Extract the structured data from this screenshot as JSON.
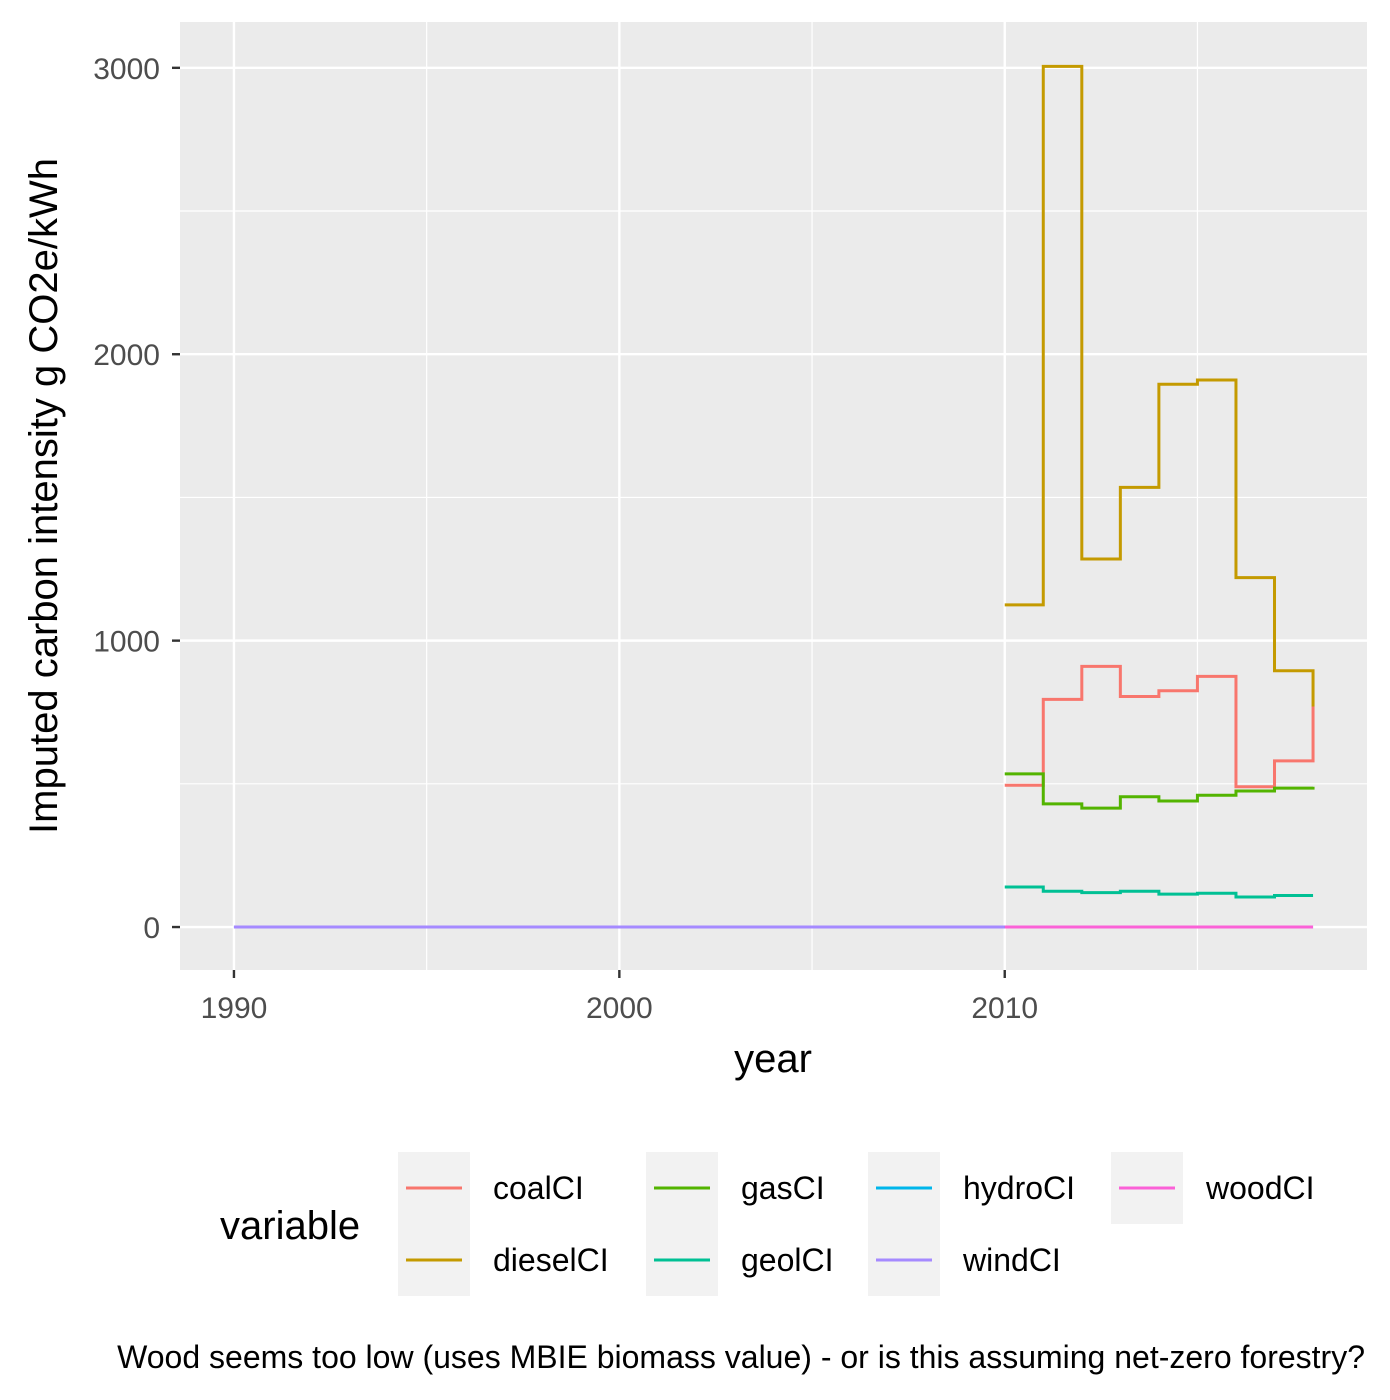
{
  "chart_data": {
    "type": "line",
    "step": true,
    "xlabel": "year",
    "ylabel": "Imputed carbon intensity g CO2e/kWh",
    "caption": "Wood seems too low (uses MBIE biomass value) - or is this assuming net-zero forestry?",
    "xlim": [
      1988.6,
      2019.4
    ],
    "ylim": [
      -150,
      3160
    ],
    "x_ticks": [
      1990,
      2000,
      2010
    ],
    "x_tick_labels": [
      "1990",
      "2000",
      "2010"
    ],
    "y_ticks": [
      0,
      1000,
      2000,
      3000
    ],
    "y_tick_labels": [
      "0",
      "1000",
      "2000",
      "3000"
    ],
    "grid": true,
    "legend": {
      "title": "variable",
      "position": "bottom",
      "entries": [
        {
          "label": "coalCI",
          "color": "#F8766D"
        },
        {
          "label": "dieselCI",
          "color": "#C49A00"
        },
        {
          "label": "gasCI",
          "color": "#53B400"
        },
        {
          "label": "geolCI",
          "color": "#00C094"
        },
        {
          "label": "hydroCI",
          "color": "#00B6EB"
        },
        {
          "label": "windCI",
          "color": "#A58AFF"
        },
        {
          "label": "woodCI",
          "color": "#FB61D7"
        }
      ]
    },
    "series": [
      {
        "name": "coalCI",
        "color": "#F8766D",
        "x": [
          2010,
          2011,
          2012,
          2013,
          2014,
          2015,
          2016,
          2017,
          2018
        ],
        "y": [
          495,
          795,
          910,
          805,
          825,
          875,
          490,
          580,
          770
        ]
      },
      {
        "name": "dieselCI",
        "color": "#C49A00",
        "x": [
          2010,
          2011,
          2012,
          2013,
          2014,
          2015,
          2016,
          2017,
          2018
        ],
        "y": [
          1125,
          3005,
          1285,
          1535,
          1895,
          1910,
          1220,
          895,
          770
        ]
      },
      {
        "name": "gasCI",
        "color": "#53B400",
        "x": [
          2010,
          2011,
          2012,
          2013,
          2014,
          2015,
          2016,
          2017,
          2018
        ],
        "y": [
          535,
          430,
          415,
          455,
          440,
          460,
          475,
          485,
          490
        ]
      },
      {
        "name": "geolCI",
        "color": "#00C094",
        "x": [
          2010,
          2011,
          2012,
          2013,
          2014,
          2015,
          2016,
          2017,
          2018
        ],
        "y": [
          140,
          125,
          120,
          125,
          115,
          118,
          105,
          110,
          110
        ]
      },
      {
        "name": "hydroCI",
        "color": "#00B6EB",
        "x": [
          1990,
          2018
        ],
        "y": [
          0,
          0
        ]
      },
      {
        "name": "windCI",
        "color": "#A58AFF",
        "x": [
          1990,
          2010
        ],
        "y": [
          0,
          0
        ]
      },
      {
        "name": "woodCI",
        "color": "#FB61D7",
        "x": [
          2010,
          2018
        ],
        "y": [
          0,
          0
        ]
      }
    ]
  }
}
